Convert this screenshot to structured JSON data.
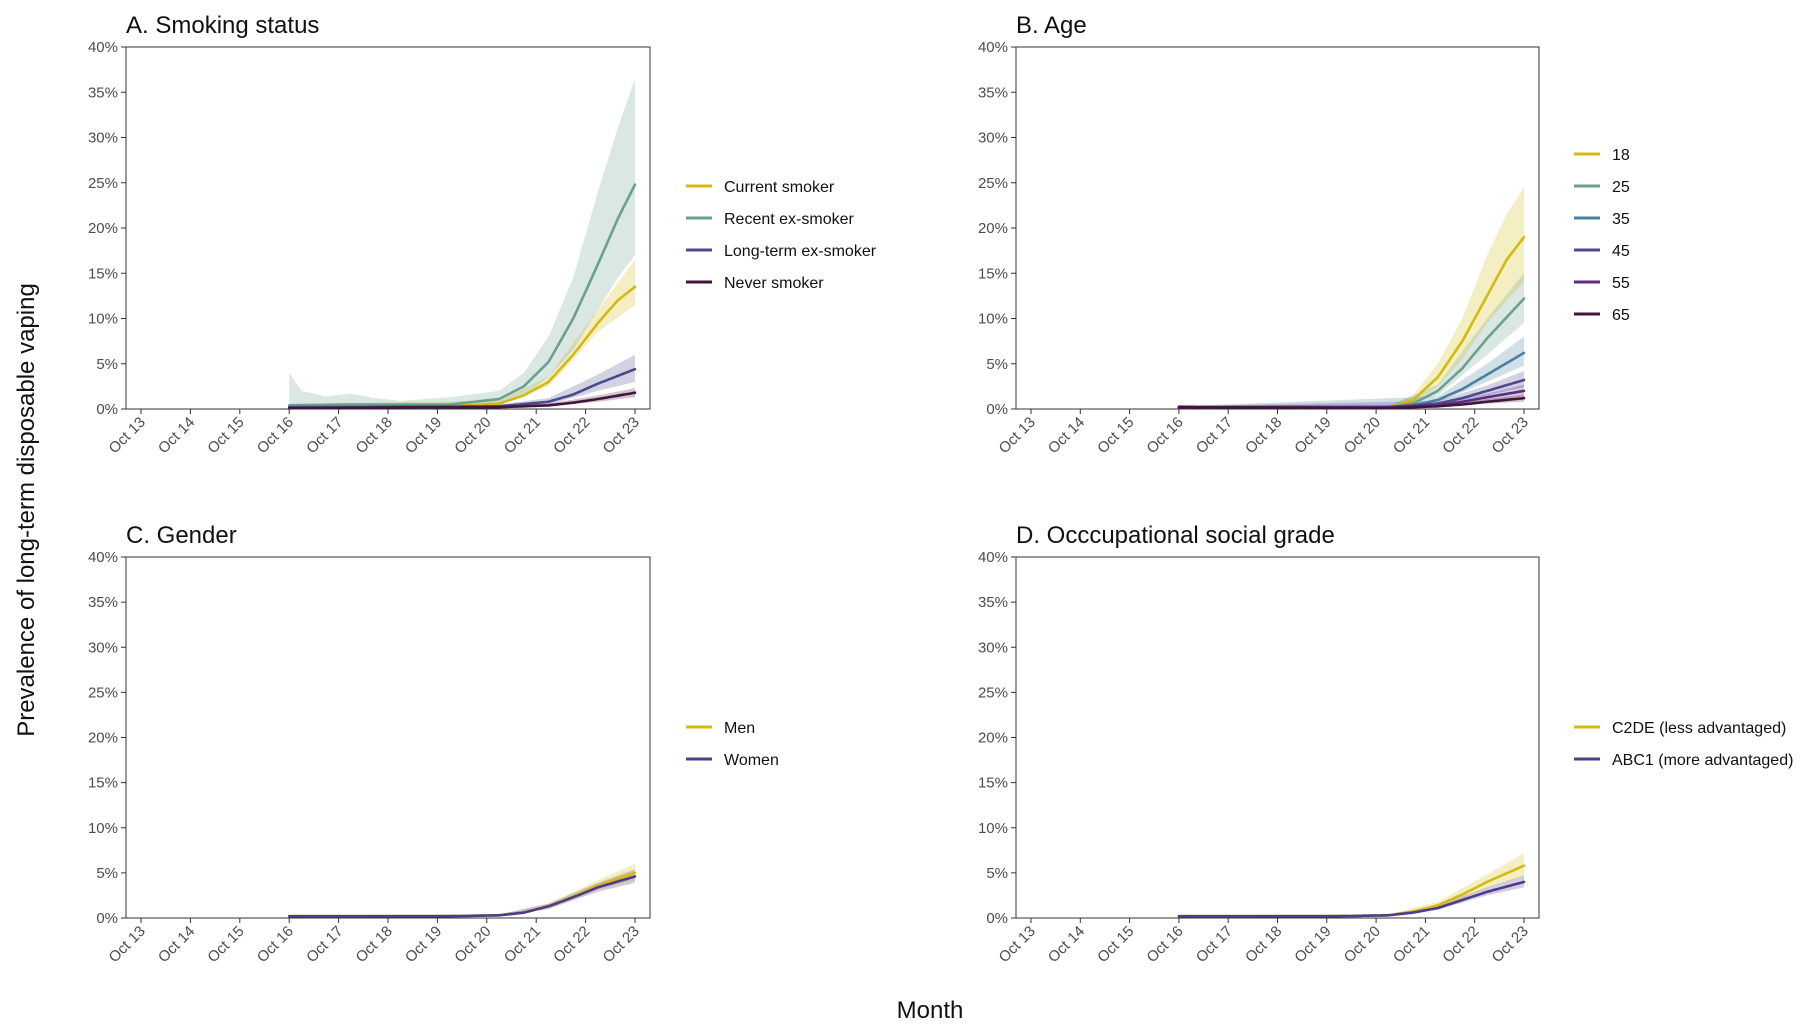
{
  "figure": {
    "ylabel": "Prevalence of long-term disposable vaping",
    "xlabel": "Month"
  },
  "chart_data": [
    {
      "type": "line",
      "title": "A. Smoking status",
      "x": [
        "Oct 13",
        "Oct 14",
        "Oct 15",
        "Oct 16",
        "Oct 17",
        "Oct 18",
        "Oct 19",
        "Oct 20",
        "Oct 21",
        "Oct 22",
        "Oct 23"
      ],
      "ylim": [
        0,
        40
      ],
      "yticks": [
        "0%",
        "5%",
        "10%",
        "15%",
        "20%",
        "25%",
        "30%",
        "35%",
        "40%"
      ],
      "xrange": [
        2016.75,
        2023.75
      ],
      "grid": false,
      "legend": "right",
      "series": [
        {
          "name": "Current smoker",
          "color": "#d4ba10",
          "points": [
            [
              2016.75,
              0.3
            ],
            [
              2020,
              0.3
            ],
            [
              2021,
              0.6
            ],
            [
              2021.5,
              1.5
            ],
            [
              2022,
              3
            ],
            [
              2022.5,
              6
            ],
            [
              2023,
              9.5
            ],
            [
              2023.4,
              12
            ],
            [
              2023.75,
              13.5
            ]
          ],
          "band": [
            [
              2016.75,
              0.0,
              0.6
            ],
            [
              2021,
              0.4,
              0.9
            ],
            [
              2022,
              2.5,
              3.6
            ],
            [
              2023,
              8.5,
              11
            ],
            [
              2023.75,
              11.5,
              16.5
            ]
          ]
        },
        {
          "name": "Recent ex-smoker",
          "color": "#6aa08e",
          "points": [
            [
              2016.75,
              0.4
            ],
            [
              2018,
              0.5
            ],
            [
              2020,
              0.5
            ],
            [
              2021,
              1.1
            ],
            [
              2021.5,
              2.5
            ],
            [
              2022,
              5.2
            ],
            [
              2022.5,
              10
            ],
            [
              2023,
              16
            ],
            [
              2023.4,
              21
            ],
            [
              2023.75,
              24.8
            ]
          ],
          "band": [
            [
              2016.75,
              0,
              4
            ],
            [
              2017,
              0,
              2
            ],
            [
              2017.5,
              0,
              1.4
            ],
            [
              2018,
              0,
              1.7
            ],
            [
              2018.5,
              0,
              1.2
            ],
            [
              2019,
              0,
              0.9
            ],
            [
              2020,
              0,
              1.3
            ],
            [
              2021,
              0.5,
              2
            ],
            [
              2021.5,
              1.5,
              4
            ],
            [
              2022,
              3.5,
              8
            ],
            [
              2022.5,
              6.5,
              14.5
            ],
            [
              2023,
              11,
              24
            ],
            [
              2023.4,
              14.5,
              31
            ],
            [
              2023.75,
              17,
              36.5
            ]
          ]
        },
        {
          "name": "Long-term ex-smoker",
          "color": "#4a4a8c",
          "points": [
            [
              2016.75,
              0.2
            ],
            [
              2021,
              0.3
            ],
            [
              2022,
              0.8
            ],
            [
              2022.5,
              1.6
            ],
            [
              2023,
              2.8
            ],
            [
              2023.75,
              4.4
            ]
          ],
          "band": [
            [
              2016.75,
              0,
              0.4
            ],
            [
              2021,
              0.1,
              0.5
            ],
            [
              2022,
              0.5,
              1.2
            ],
            [
              2023,
              2,
              3.8
            ],
            [
              2023.75,
              3,
              6
            ]
          ]
        },
        {
          "name": "Never smoker",
          "color": "#43133d",
          "points": [
            [
              2016.75,
              0.1
            ],
            [
              2021,
              0.2
            ],
            [
              2022,
              0.4
            ],
            [
              2022.5,
              0.7
            ],
            [
              2023,
              1.1
            ],
            [
              2023.75,
              1.8
            ]
          ],
          "band": [
            [
              2016.75,
              0,
              0.2
            ],
            [
              2021,
              0.1,
              0.3
            ],
            [
              2022,
              0.3,
              0.6
            ],
            [
              2023,
              0.8,
              1.5
            ],
            [
              2023.75,
              1.3,
              2.3
            ]
          ]
        }
      ]
    },
    {
      "type": "line",
      "title": "B. Age",
      "x": [
        "Oct 13",
        "Oct 14",
        "Oct 15",
        "Oct 16",
        "Oct 17",
        "Oct 18",
        "Oct 19",
        "Oct 20",
        "Oct 21",
        "Oct 22",
        "Oct 23"
      ],
      "ylim": [
        0,
        40
      ],
      "yticks": [
        "0%",
        "5%",
        "10%",
        "15%",
        "20%",
        "25%",
        "30%",
        "35%",
        "40%"
      ],
      "xrange": [
        2016.75,
        2023.75
      ],
      "grid": false,
      "legend": "right",
      "series": [
        {
          "name": "18",
          "color": "#d4ba10",
          "points": [
            [
              2016.75,
              0.3
            ],
            [
              2017.5,
              0.2
            ],
            [
              2021,
              0.2
            ],
            [
              2021.5,
              1
            ],
            [
              2022,
              3.5
            ],
            [
              2022.5,
              7.5
            ],
            [
              2023,
              12.5
            ],
            [
              2023.4,
              16.5
            ],
            [
              2023.75,
              19
            ]
          ],
          "band": [
            [
              2016.75,
              0.1,
              0.5
            ],
            [
              2021,
              0.1,
              0.4
            ],
            [
              2021.5,
              0.6,
              1.5
            ],
            [
              2022,
              2.5,
              5
            ],
            [
              2022.5,
              5.5,
              10
            ],
            [
              2023,
              9.5,
              17
            ],
            [
              2023.4,
              12,
              21.5
            ],
            [
              2023.75,
              14,
              24.5
            ]
          ]
        },
        {
          "name": "25",
          "color": "#6aa08e",
          "points": [
            [
              2016.75,
              0.2
            ],
            [
              2021,
              0.2
            ],
            [
              2021.5,
              0.6
            ],
            [
              2022,
              2
            ],
            [
              2022.5,
              4.5
            ],
            [
              2023,
              7.8
            ],
            [
              2023.75,
              12.2
            ]
          ],
          "band": [
            [
              2016.75,
              0.1,
              0.4
            ],
            [
              2021,
              0.1,
              0.3
            ],
            [
              2022,
              1.5,
              2.7
            ],
            [
              2023,
              6,
              10
            ],
            [
              2023.75,
              9.5,
              15
            ]
          ]
        },
        {
          "name": "35",
          "color": "#4a7fa0",
          "points": [
            [
              2016.75,
              0.2
            ],
            [
              2021,
              0.2
            ],
            [
              2021.5,
              0.4
            ],
            [
              2022,
              1
            ],
            [
              2022.5,
              2.2
            ],
            [
              2023,
              3.8
            ],
            [
              2023.75,
              6.2
            ]
          ],
          "band": [
            [
              2016.75,
              0.1,
              0.3
            ],
            [
              2022,
              0.7,
              1.4
            ],
            [
              2023,
              3,
              5
            ],
            [
              2023.75,
              4.8,
              8
            ]
          ]
        },
        {
          "name": "45",
          "color": "#4f4790",
          "points": [
            [
              2016.75,
              0.2
            ],
            [
              2021,
              0.2
            ],
            [
              2022,
              0.6
            ],
            [
              2022.5,
              1.2
            ],
            [
              2023,
              2
            ],
            [
              2023.75,
              3.2
            ]
          ],
          "band": [
            [
              2016.75,
              0.1,
              0.3
            ],
            [
              2022,
              0.4,
              0.9
            ],
            [
              2023,
              1.5,
              2.6
            ],
            [
              2023.75,
              2.4,
              4.2
            ]
          ]
        },
        {
          "name": "55",
          "color": "#5a2d82",
          "points": [
            [
              2016.75,
              0.2
            ],
            [
              2021,
              0.2
            ],
            [
              2022,
              0.4
            ],
            [
              2022.5,
              0.8
            ],
            [
              2023,
              1.3
            ],
            [
              2023.75,
              2
            ]
          ],
          "band": [
            [
              2016.75,
              0.1,
              0.3
            ],
            [
              2022,
              0.3,
              0.6
            ],
            [
              2023,
              0.9,
              1.7
            ],
            [
              2023.75,
              1.4,
              2.7
            ]
          ]
        },
        {
          "name": "65",
          "color": "#43133d",
          "points": [
            [
              2016.75,
              0.2
            ],
            [
              2021,
              0.1
            ],
            [
              2022,
              0.3
            ],
            [
              2022.5,
              0.5
            ],
            [
              2023,
              0.8
            ],
            [
              2023.75,
              1.2
            ]
          ],
          "band": [
            [
              2016.75,
              0.1,
              0.3
            ],
            [
              2022,
              0.2,
              0.4
            ],
            [
              2023,
              0.6,
              1.1
            ],
            [
              2023.75,
              0.8,
              1.6
            ]
          ]
        }
      ]
    },
    {
      "type": "line",
      "title": "C. Gender",
      "x": [
        "Oct 13",
        "Oct 14",
        "Oct 15",
        "Oct 16",
        "Oct 17",
        "Oct 18",
        "Oct 19",
        "Oct 20",
        "Oct 21",
        "Oct 22",
        "Oct 23"
      ],
      "ylim": [
        0,
        40
      ],
      "yticks": [
        "0%",
        "5%",
        "10%",
        "15%",
        "20%",
        "25%",
        "30%",
        "35%",
        "40%"
      ],
      "xrange": [
        2016.75,
        2023.75
      ],
      "grid": false,
      "legend": "right",
      "series": [
        {
          "name": "Men",
          "color": "#d4ba10",
          "points": [
            [
              2016.75,
              0.2
            ],
            [
              2020,
              0.2
            ],
            [
              2021,
              0.3
            ],
            [
              2021.5,
              0.6
            ],
            [
              2022,
              1.3
            ],
            [
              2022.5,
              2.4
            ],
            [
              2023,
              3.6
            ],
            [
              2023.75,
              5
            ]
          ],
          "band": [
            [
              2016.75,
              0.1,
              0.3
            ],
            [
              2021,
              0.2,
              0.4
            ],
            [
              2022,
              1,
              1.6
            ],
            [
              2023,
              3.1,
              4.2
            ],
            [
              2023.75,
              4.2,
              6
            ]
          ]
        },
        {
          "name": "Women",
          "color": "#4f3b8c",
          "points": [
            [
              2016.75,
              0.2
            ],
            [
              2020,
              0.2
            ],
            [
              2021,
              0.3
            ],
            [
              2021.5,
              0.6
            ],
            [
              2022,
              1.3
            ],
            [
              2022.5,
              2.3
            ],
            [
              2023,
              3.4
            ],
            [
              2023.75,
              4.6
            ]
          ],
          "band": [
            [
              2016.75,
              0.1,
              0.3
            ],
            [
              2021,
              0.2,
              0.4
            ],
            [
              2022,
              1,
              1.6
            ],
            [
              2023,
              2.9,
              3.9
            ],
            [
              2023.75,
              3.9,
              5.4
            ]
          ]
        }
      ]
    },
    {
      "type": "line",
      "title": "D. Occcupational social grade",
      "x": [
        "Oct 13",
        "Oct 14",
        "Oct 15",
        "Oct 16",
        "Oct 17",
        "Oct 18",
        "Oct 19",
        "Oct 20",
        "Oct 21",
        "Oct 22",
        "Oct 23"
      ],
      "ylim": [
        0,
        40
      ],
      "yticks": [
        "0%",
        "5%",
        "10%",
        "15%",
        "20%",
        "25%",
        "30%",
        "35%",
        "40%"
      ],
      "xrange": [
        2016.75,
        2023.75
      ],
      "grid": false,
      "legend": "right",
      "series": [
        {
          "name": "C2DE (less advantaged)",
          "color": "#d4ba10",
          "points": [
            [
              2016.75,
              0.2
            ],
            [
              2020,
              0.2
            ],
            [
              2021,
              0.3
            ],
            [
              2021.5,
              0.7
            ],
            [
              2022,
              1.4
            ],
            [
              2022.5,
              2.6
            ],
            [
              2023,
              4
            ],
            [
              2023.75,
              5.8
            ]
          ],
          "band": [
            [
              2016.75,
              0.1,
              0.3
            ],
            [
              2021,
              0.2,
              0.4
            ],
            [
              2022,
              1.1,
              1.8
            ],
            [
              2023,
              3.3,
              4.8
            ],
            [
              2023.75,
              4.6,
              7.2
            ]
          ]
        },
        {
          "name": "ABC1 (more advantaged)",
          "color": "#4f3b8c",
          "points": [
            [
              2016.75,
              0.2
            ],
            [
              2020,
              0.2
            ],
            [
              2021,
              0.3
            ],
            [
              2021.5,
              0.6
            ],
            [
              2022,
              1.1
            ],
            [
              2022.5,
              2
            ],
            [
              2023,
              2.9
            ],
            [
              2023.75,
              4
            ]
          ],
          "band": [
            [
              2016.75,
              0.1,
              0.3
            ],
            [
              2021,
              0.2,
              0.4
            ],
            [
              2022,
              0.9,
              1.4
            ],
            [
              2023,
              2.5,
              3.4
            ],
            [
              2023.75,
              3.4,
              4.7
            ]
          ]
        }
      ]
    }
  ]
}
